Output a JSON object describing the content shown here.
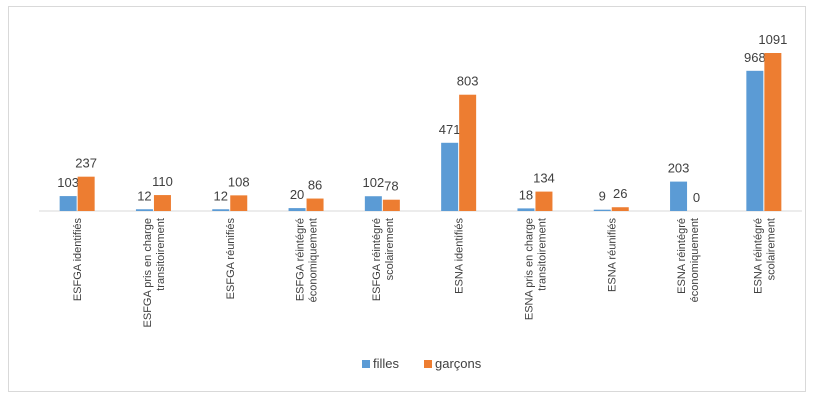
{
  "chart_data": {
    "type": "bar",
    "categories": [
      [
        "ESFGA identifiés"
      ],
      [
        "ESFGA pris en charge",
        "transitoirement"
      ],
      [
        "ESFGA réunifiés"
      ],
      [
        "ESFGA réintégré",
        "économiquement"
      ],
      [
        "ESFGA réintégré",
        "scolairement"
      ],
      [
        "ESNA identifiés"
      ],
      [
        "ESNA pris en charge",
        "transitoirement"
      ],
      [
        "ESNA réunifiés"
      ],
      [
        "ESNA réintégré",
        "économiquement"
      ],
      [
        "ESNA réintégré",
        "scolairement"
      ]
    ],
    "series": [
      {
        "name": "filles",
        "color": "#5b9bd5",
        "values": [
          103,
          12,
          12,
          20,
          102,
          471,
          18,
          9,
          203,
          968
        ]
      },
      {
        "name": "garçons",
        "color": "#ed7d31",
        "values": [
          237,
          110,
          108,
          86,
          78,
          803,
          134,
          26,
          0,
          1091
        ]
      }
    ],
    "ylim": [
      0,
      1200
    ],
    "grid": false,
    "legend_position": "bottom"
  }
}
